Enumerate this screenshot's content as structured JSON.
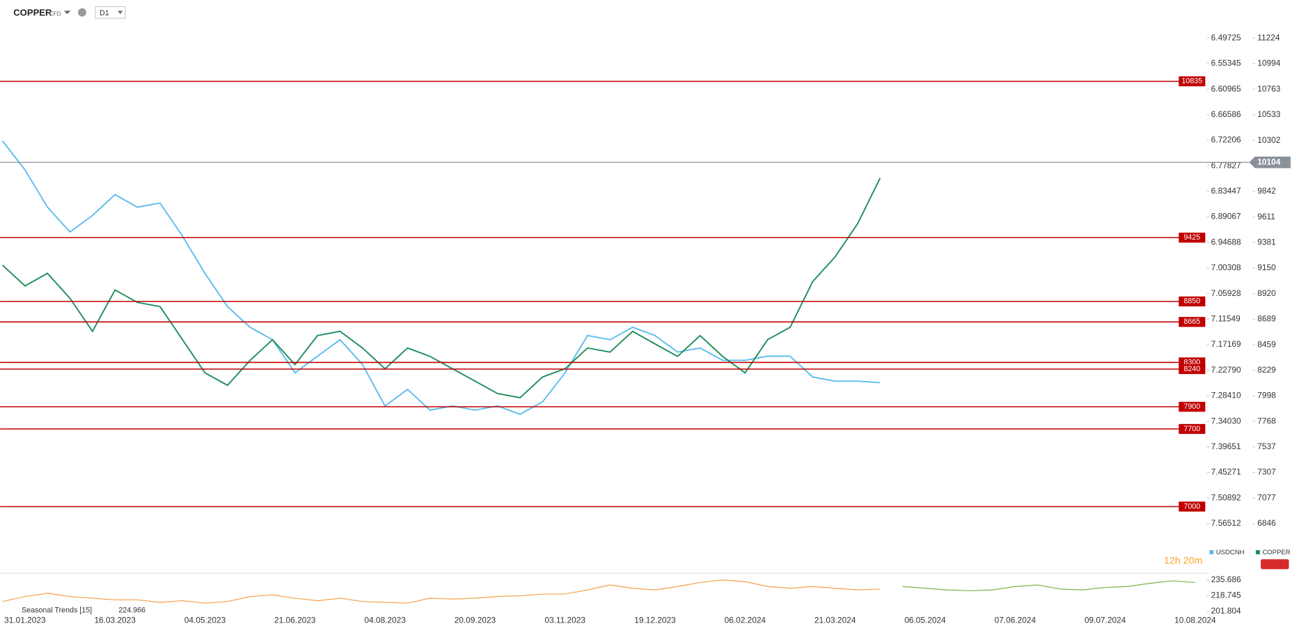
{
  "header": {
    "symbol": "COPPER",
    "badge": "CFD",
    "timeframe": "D1"
  },
  "timer": "12h 20m",
  "chart_data": [
    {
      "type": "line",
      "categories": [
        null,
        "31.01.2023",
        null,
        null,
        null,
        "16.03.2023",
        null,
        null,
        null,
        "04.05.2023",
        null,
        null,
        null,
        "21.06.2023",
        null,
        null,
        null,
        "04.08.2023",
        null,
        null,
        null,
        "20.09.2023",
        null,
        null,
        null,
        "03.11.2023",
        null,
        null,
        null,
        "19.12.2023",
        null,
        null,
        null,
        "06.02.2024",
        null,
        null,
        null,
        "21.03.2024",
        null,
        null,
        null,
        "06.05.2024",
        null,
        null,
        null,
        "07.06.2024",
        null,
        null,
        null,
        "09.07.2024",
        null,
        null,
        null,
        "10.08.2024"
      ],
      "series": [
        {
          "name": "USDCNH",
          "color": "#5bbcec",
          "axis": "y2",
          "values": [
            6.7232,
            6.7869,
            6.8689,
            6.9236,
            6.8872,
            6.8416,
            6.8689,
            6.8598,
            6.9327,
            7.0147,
            7.0876,
            7.1332,
            7.1605,
            7.2334,
            7.1969,
            7.1605,
            7.2152,
            7.3063,
            7.2698,
            7.3154,
            7.3063,
            7.3154,
            7.3063,
            7.3245,
            7.2972,
            7.2334,
            7.1514,
            7.1605,
            7.1332,
            7.1514,
            7.1878,
            7.1787,
            7.206,
            7.206,
            7.1969,
            7.1969,
            7.2425,
            7.2516,
            7.2516,
            7.2552,
            null,
            null,
            null,
            null,
            null,
            null,
            null,
            null,
            null,
            null,
            null,
            null,
            null,
            null
          ]
        },
        {
          "name": "COPPER",
          "color": "#1e8c5a",
          "values": [
            9177,
            8990,
            9103,
            8878,
            8580,
            8953,
            8841,
            8804,
            8505,
            8206,
            8094,
            8318,
            8505,
            8281,
            8542,
            8580,
            8430,
            8243,
            8430,
            8355,
            8243,
            8131,
            8019,
            7982,
            8169,
            8243,
            8430,
            8393,
            8580,
            8467,
            8355,
            8542,
            8355,
            8206,
            8505,
            8617,
            9028,
            9252,
            9551,
            9962,
            null,
            null,
            null,
            null,
            null,
            null,
            null,
            null,
            null,
            null,
            null,
            null,
            null,
            null
          ]
        }
      ],
      "ylim": [
        6413,
        11568
      ],
      "yticks": [
        6846,
        7077,
        7307,
        7537,
        7768,
        7998,
        8229,
        8459,
        8689,
        8920,
        9150,
        9381,
        9611,
        9842,
        10302,
        10533,
        10763,
        10994,
        11224
      ],
      "y2lim": [
        7.6708,
        6.4134
      ],
      "y2ticks": [
        6.49725,
        6.55345,
        6.60965,
        6.66586,
        6.72206,
        6.77827,
        6.83447,
        6.89067,
        6.94688,
        7.00308,
        7.05928,
        7.11549,
        7.17169,
        {
          "value": 7.2279,
          "label": "7.22790"
        },
        {
          "value": 7.2841,
          "label": "7.28410"
        },
        {
          "value": 7.3403,
          "label": "7.34030"
        },
        7.39651,
        7.45271,
        7.50892,
        7.56512
      ],
      "levels": [
        10835,
        9425,
        8850,
        8665,
        8300,
        8240,
        7900,
        7700,
        7000
      ],
      "level_color": "#c00000",
      "last_price": 10104,
      "last_price_color": "#8a9199"
    },
    {
      "type": "line",
      "title": "Seasonal Trends [15]",
      "last_value": 224.966,
      "past": {
        "color": "#f5a04a",
        "values": [
          212.5,
          217.9,
          221.4,
          217.9,
          216.1,
          214.3,
          214.3,
          211.6,
          213.4,
          210.7,
          212.5,
          217.9,
          219.6,
          216.1,
          213.4,
          216.1,
          212.5,
          211.6,
          210.7,
          216.1,
          215.2,
          216.1,
          217.9,
          218.7,
          220.5,
          220.5,
          225.0,
          230.3,
          226.8,
          225.0,
          228.6,
          233.0,
          235.7,
          233.9,
          228.6,
          226.8,
          228.6,
          226.8,
          225.0,
          225.9
        ]
      },
      "future": {
        "color": "#7cb342",
        "values": [
          228.6,
          226.8,
          225.0,
          224.1,
          225.0,
          228.6,
          230.3,
          225.9,
          225.0,
          227.7,
          228.6,
          232.1,
          234.8,
          233.0
        ]
      },
      "ylim": [
        197.35,
        242.82
      ],
      "yticks": [
        201.804,
        218.745,
        235.686
      ]
    }
  ]
}
